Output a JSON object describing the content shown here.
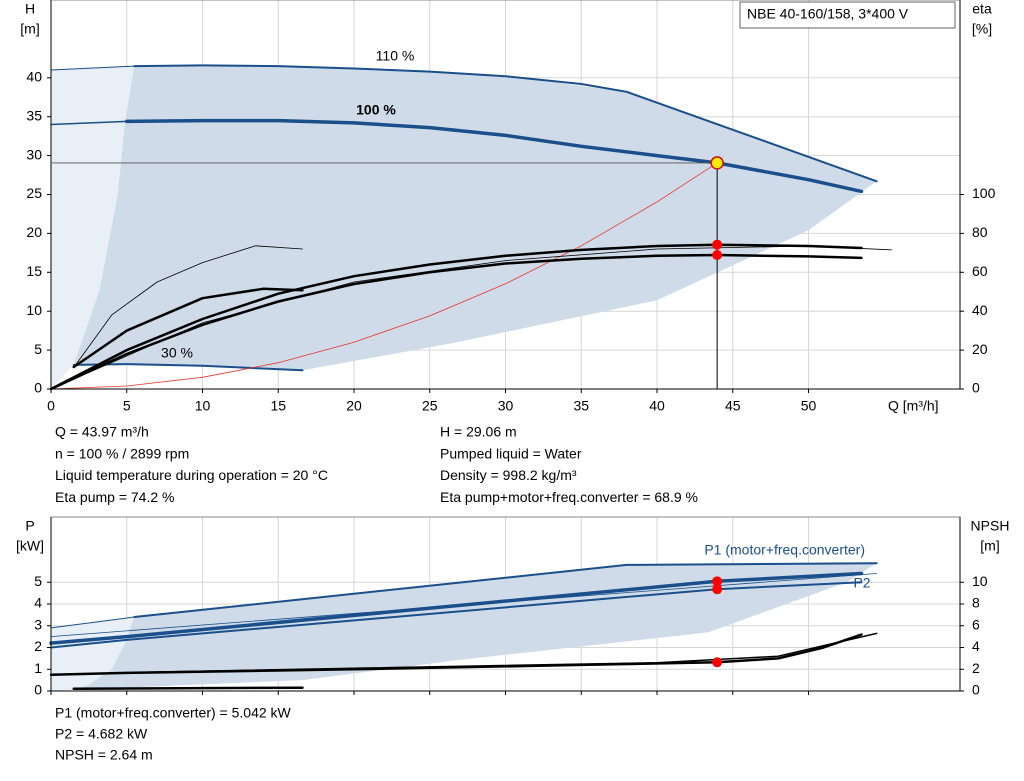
{
  "chart_data": [
    {
      "type": "line",
      "title": "NBE 40-160/158, 3*400 V",
      "y_label": "H",
      "y_unit": "[m]",
      "y2_label": "eta",
      "y2_unit": "[%]",
      "x_label": "Q [m³/h]",
      "xlim": [
        0,
        60
      ],
      "ylim": [
        0,
        50
      ],
      "y2lim": [
        0,
        200
      ],
      "xticks": [
        0,
        5,
        10,
        15,
        20,
        25,
        30,
        35,
        40,
        45,
        50
      ],
      "yticks": [
        0,
        5,
        10,
        15,
        20,
        25,
        30,
        35,
        40
      ],
      "y2ticks": [
        0,
        20,
        40,
        60,
        80,
        100
      ],
      "grid": true,
      "series": [
        {
          "type": "area",
          "color": "#e8eff7",
          "x": [
            0,
            0,
            5.5,
            4.9,
            4.4,
            3.2,
            1.5
          ],
          "values": [
            0,
            41,
            41.5,
            34.5,
            25,
            12.7,
            3.1
          ]
        },
        {
          "type": "area",
          "color": "#cfdbe8",
          "x": [
            5.5,
            10,
            20,
            30,
            38,
            54.5,
            50,
            40,
            26.5,
            16.6,
            10,
            5,
            1.5,
            3.2,
            4.4,
            4.9
          ],
          "values": [
            41.5,
            41.6,
            41.2,
            40.2,
            38.2,
            26.7,
            20.4,
            11.4,
            5.9,
            2.4,
            3.0,
            3.2,
            3.1,
            12.7,
            25,
            34.5
          ]
        },
        {
          "type": "line",
          "color": "#1a4f8b",
          "width": 1,
          "x": [
            0,
            5.5
          ],
          "values": [
            41,
            41.5
          ]
        },
        {
          "type": "line",
          "color": "#1a4f8b",
          "width": 2,
          "label": "110 %",
          "x": [
            5.5,
            10,
            15,
            20,
            25,
            30,
            35,
            38,
            54.5
          ],
          "values": [
            41.5,
            41.6,
            41.5,
            41.2,
            40.8,
            40.2,
            39.2,
            38.2,
            26.7
          ]
        },
        {
          "type": "line",
          "color": "#1a4f8b",
          "width": 1.5,
          "x": [
            0,
            5
          ],
          "values": [
            34,
            34.4
          ]
        },
        {
          "type": "line",
          "color": "#1a4f8b",
          "width": 3.5,
          "label": "100 %",
          "x": [
            5,
            10,
            15,
            20,
            25,
            30,
            35,
            40,
            43.97,
            50,
            53.5
          ],
          "values": [
            34.4,
            34.5,
            34.5,
            34.2,
            33.6,
            32.6,
            31.2,
            30.0,
            29.06,
            26.9,
            25.4
          ]
        },
        {
          "type": "line",
          "color": "#1a4f8b",
          "width": 2,
          "label": "30 %",
          "x": [
            1.5,
            5,
            10,
            16.6
          ],
          "values": [
            3.1,
            3.2,
            3.0,
            2.4
          ]
        },
        {
          "type": "line",
          "color": "#e8332a",
          "width": 0.8,
          "x": [
            0,
            5,
            10,
            15,
            20,
            25,
            30,
            35,
            40,
            43.97
          ],
          "values": [
            0,
            0.38,
            1.5,
            3.38,
            6.01,
            9.39,
            13.52,
            18.41,
            24.05,
            29.06
          ]
        },
        {
          "type": "line",
          "axis": "y2",
          "color": "#000000",
          "width": 0.8,
          "x": [
            1.5,
            4,
            7,
            10,
            13.5,
            16.6
          ],
          "values": [
            11,
            38,
            55,
            65,
            73.6,
            72
          ]
        },
        {
          "type": "line",
          "axis": "y2",
          "color": "#000000",
          "width": 2.5,
          "x": [
            1.5,
            5,
            10,
            14,
            16.6
          ],
          "values": [
            11.3,
            30,
            46.7,
            51.5,
            50.8
          ]
        },
        {
          "type": "line",
          "axis": "y2",
          "color": "#000000",
          "width": 2.5,
          "x": [
            0,
            5,
            10,
            15,
            20,
            25,
            30,
            35,
            40,
            43.97,
            50,
            53.5
          ],
          "values": [
            0,
            20,
            36,
            49,
            58,
            64,
            68.5,
            71.5,
            73.5,
            74.2,
            73.5,
            72.5
          ]
        },
        {
          "type": "line",
          "axis": "y2",
          "color": "#000000",
          "width": 2.5,
          "x": [
            0,
            5,
            10,
            15,
            20,
            25,
            30,
            35,
            40,
            43.97,
            50,
            53.5
          ],
          "values": [
            0,
            18,
            33,
            45,
            54,
            60,
            64.5,
            67,
            68.5,
            68.9,
            68.2,
            67.4
          ]
        },
        {
          "type": "line",
          "axis": "y2",
          "color": "#000000",
          "width": 0.8,
          "x": [
            0,
            10,
            20,
            30,
            40,
            50,
            55.5
          ],
          "values": [
            0,
            34,
            55,
            66,
            72,
            73.5,
            71.5
          ]
        }
      ],
      "operating_point": {
        "q": 43.97,
        "h": 29.06,
        "eta_pump": 74.2,
        "eta_total": 68.9
      }
    },
    {
      "type": "line",
      "y_label": "P",
      "y_unit": "[kW]",
      "y2_label": "NPSH",
      "y2_unit": "[m]",
      "xlim": [
        0,
        60
      ],
      "ylim": [
        0,
        8
      ],
      "y2lim": [
        0,
        16
      ],
      "xticks": [
        0,
        5,
        10,
        15,
        20,
        25,
        30,
        35,
        40,
        45,
        50
      ],
      "yticks": [
        0,
        1,
        2,
        3,
        4,
        5
      ],
      "y2ticks": [
        0,
        2,
        4,
        6,
        8,
        10
      ],
      "grid": true,
      "series": [
        {
          "type": "area",
          "color": "#e8eff7",
          "x": [
            0,
            0,
            5.5,
            4.9,
            4,
            2.5,
            1.5
          ],
          "values": [
            0,
            2.9,
            3.4,
            2.2,
            1.0,
            0.3,
            0.05
          ]
        },
        {
          "type": "area",
          "color": "#cfdbe8",
          "x": [
            5.5,
            38,
            54.5,
            52.5,
            43.4,
            26.6,
            16.6,
            1.5,
            2.5,
            4,
            4.9
          ],
          "values": [
            3.4,
            5.8,
            5.87,
            5.0,
            2.7,
            1.4,
            0.5,
            0.05,
            0.3,
            1.0,
            2.2
          ]
        },
        {
          "type": "line",
          "color": "#1a4f8b",
          "width": 1,
          "x": [
            0,
            5.5
          ],
          "values": [
            2.9,
            3.4
          ]
        },
        {
          "type": "line",
          "color": "#1a4f8b",
          "width": 2,
          "label": "P1 (motor+freq.converter)",
          "x": [
            5.5,
            38,
            54.5
          ],
          "values": [
            3.4,
            5.8,
            5.87
          ]
        },
        {
          "type": "line",
          "color": "#1a4f8b",
          "width": 3.5,
          "x": [
            0,
            5,
            43.97,
            53.5
          ],
          "values": [
            2.2,
            2.5,
            5.042,
            5.4
          ]
        },
        {
          "type": "line",
          "color": "#1a4f8b",
          "width": 2,
          "label": "P2",
          "x": [
            0,
            5,
            43.97,
            53.5
          ],
          "values": [
            2.0,
            2.35,
            4.682,
            5.0
          ]
        },
        {
          "type": "line",
          "color": "#1a4f8b",
          "width": 0.8,
          "x": [
            0,
            54.5
          ],
          "values": [
            2.5,
            5.4
          ]
        },
        {
          "type": "line",
          "axis": "y2",
          "color": "#000000",
          "width": 2.5,
          "x": [
            0,
            5,
            20,
            35,
            43.97,
            48,
            51,
            53.5
          ],
          "values": [
            1.5,
            1.66,
            2.0,
            2.4,
            2.64,
            3.0,
            4.0,
            5.2
          ]
        },
        {
          "type": "line",
          "axis": "y2",
          "color": "#000000",
          "width": 1.5,
          "x": [
            5.5,
            20,
            40,
            48,
            52,
            54.5
          ],
          "values": [
            1.7,
            2.1,
            2.6,
            3.2,
            4.5,
            5.3
          ]
        },
        {
          "type": "line",
          "axis": "y2",
          "color": "#000000",
          "width": 2.5,
          "x": [
            1.5,
            16.6
          ],
          "values": [
            0.2,
            0.3
          ]
        }
      ],
      "operating_point": {
        "q": 43.97,
        "p1": 5.042,
        "p2": 4.682,
        "npsh": 2.64
      }
    }
  ],
  "readouts": {
    "upper_left": [
      "Q = 43.97 m³/h",
      "n = 100 % / 2899 rpm",
      "Liquid temperature during operation = 20 °C",
      "Eta pump = 74.2 %"
    ],
    "upper_right": [
      "H = 29.06 m",
      "Pumped liquid = Water",
      "Density = 998.2 kg/m³",
      "Eta pump+motor+freq.converter = 68.9 %"
    ],
    "lower": [
      "P1 (motor+freq.converter) = 5.042 kW",
      "P2 = 4.682 kW",
      "NPSH = 2.64 m"
    ]
  }
}
